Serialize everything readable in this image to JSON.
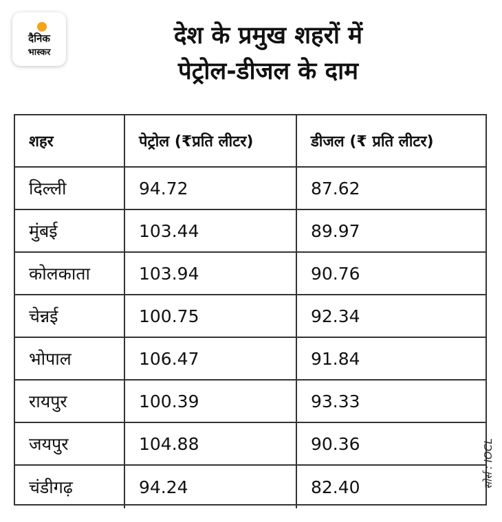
{
  "logo": {
    "line1": "दैनिक",
    "line2": "भास्कर"
  },
  "title": {
    "line1": "देश के प्रमुख शहरों में",
    "line2": "पेट्रोल-डीजल के दाम"
  },
  "table": {
    "headers": [
      "शहर",
      "पेट्रोल (₹प्रति लीटर)",
      "डीजल (₹ प्रति लीटर)"
    ],
    "rows": [
      [
        "दिल्ली",
        "94.72",
        "87.62"
      ],
      [
        "मुंबई",
        "103.44",
        "89.97"
      ],
      [
        "कोलकाता",
        "103.94",
        "90.76"
      ],
      [
        "चेन्नई",
        "100.75",
        "92.34"
      ],
      [
        "भोपाल",
        "106.47",
        "91.84"
      ],
      [
        "रायपुर",
        "100.39",
        "93.33"
      ],
      [
        "जयपुर",
        "104.88",
        "90.36"
      ],
      [
        "चंडीगढ़",
        "94.24",
        "82.40"
      ]
    ]
  },
  "source": "सोर्स : IOCL",
  "colors": {
    "logo_sun": "#f6a21a",
    "border": "#333333",
    "text": "#111111"
  }
}
